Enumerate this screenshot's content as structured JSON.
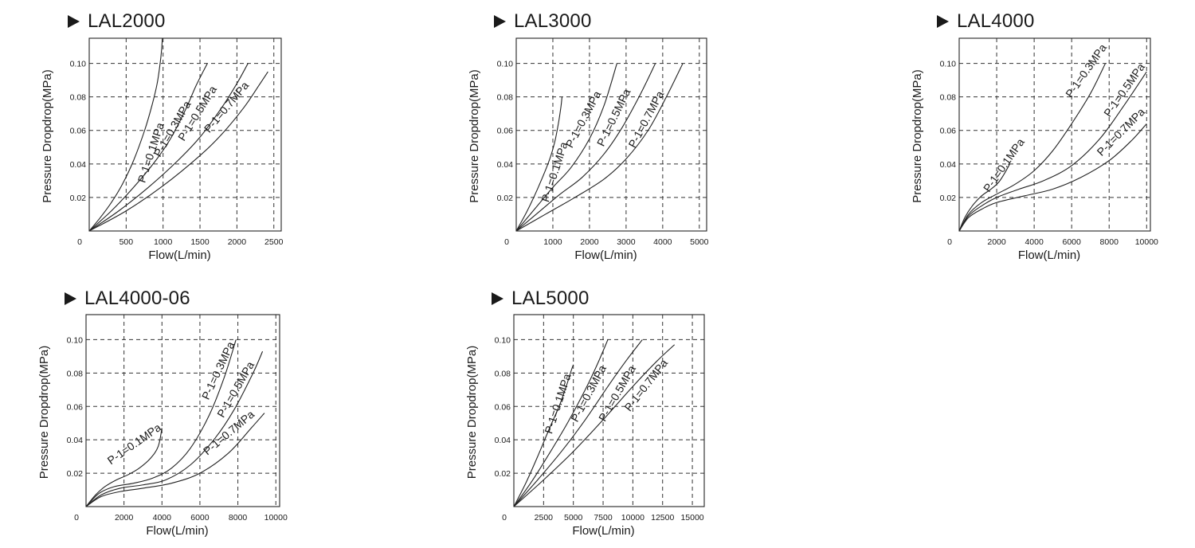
{
  "chart_data": [
    {
      "type": "line",
      "title": "LAL2000",
      "xlabel": "Flow(L/min)",
      "ylabel": "Pressure Dropdrop(MPa)",
      "xlim": [
        0,
        2600
      ],
      "ylim": [
        0,
        0.115
      ],
      "xticks": [
        0,
        500,
        1000,
        1500,
        2000,
        2500
      ],
      "xtick_labels": [
        "0",
        "500",
        "1000",
        "1500",
        "2000",
        "2500"
      ],
      "yticks": [
        0.02,
        0.04,
        0.06,
        0.08,
        0.1
      ],
      "ytick_labels": [
        "0.02",
        "0.04",
        "0.06",
        "0.08",
        "0.10"
      ],
      "grid": true,
      "series": [
        {
          "name": "P-1=0.1MPa",
          "x": [
            0,
            150,
            300,
            450,
            600,
            750,
            850,
            920,
            960,
            980,
            990
          ],
          "y": [
            0,
            0.008,
            0.017,
            0.028,
            0.042,
            0.06,
            0.075,
            0.088,
            0.1,
            0.108,
            0.115
          ]
        },
        {
          "name": "P-1=0.3MPa",
          "x": [
            0,
            300,
            600,
            900,
            1100,
            1300,
            1450,
            1600
          ],
          "y": [
            0,
            0.012,
            0.026,
            0.042,
            0.055,
            0.072,
            0.087,
            0.1
          ]
        },
        {
          "name": "P-1=0.5MPa",
          "x": [
            0,
            400,
            800,
            1200,
            1500,
            1800,
            2000,
            2150
          ],
          "y": [
            0,
            0.012,
            0.026,
            0.042,
            0.056,
            0.074,
            0.088,
            0.1
          ]
        },
        {
          "name": "P-1=0.7MPa",
          "x": [
            0,
            500,
            1000,
            1500,
            1800,
            2100,
            2300,
            2420
          ],
          "y": [
            0,
            0.012,
            0.027,
            0.045,
            0.058,
            0.074,
            0.087,
            0.095
          ]
        }
      ]
    },
    {
      "type": "line",
      "title": "LAL3000",
      "xlabel": "Flow(L/min)",
      "ylabel": "Pressure Dropdrop(MPa)",
      "xlim": [
        0,
        5200
      ],
      "ylim": [
        0,
        0.115
      ],
      "xticks": [
        0,
        1000,
        2000,
        3000,
        4000,
        5000
      ],
      "xtick_labels": [
        "0",
        "1000",
        "2000",
        "3000",
        "4000",
        "5000"
      ],
      "yticks": [
        0.02,
        0.04,
        0.06,
        0.08,
        0.1
      ],
      "ytick_labels": [
        "0.02",
        "0.04",
        "0.06",
        "0.08",
        "0.10"
      ],
      "grid": true,
      "series": [
        {
          "name": "P-1=0.1MPa",
          "x": [
            0,
            300,
            600,
            900,
            1050,
            1150,
            1220,
            1250
          ],
          "y": [
            0,
            0.012,
            0.026,
            0.042,
            0.053,
            0.064,
            0.074,
            0.08
          ]
        },
        {
          "name": "P-1=0.3MPa",
          "x": [
            0,
            500,
            1000,
            1500,
            2000,
            2400,
            2750
          ],
          "y": [
            0,
            0.013,
            0.026,
            0.038,
            0.055,
            0.075,
            0.1
          ]
        },
        {
          "name": "P-1=0.5MPa",
          "x": [
            0,
            600,
            1200,
            1800,
            2400,
            2900,
            3400,
            3800
          ],
          "y": [
            0,
            0.011,
            0.022,
            0.032,
            0.046,
            0.062,
            0.082,
            0.1
          ]
        },
        {
          "name": "P-1=0.7MPa",
          "x": [
            0,
            800,
            1600,
            2400,
            3000,
            3600,
            4100,
            4550
          ],
          "y": [
            0,
            0.01,
            0.02,
            0.031,
            0.043,
            0.06,
            0.08,
            0.1
          ]
        }
      ]
    },
    {
      "type": "line",
      "title": "LAL4000",
      "xlabel": "Flow(L/min)",
      "ylabel": "Pressure Dropdrop(MPa)",
      "xlim": [
        0,
        10200
      ],
      "ylim": [
        0,
        0.115
      ],
      "xticks": [
        0,
        2000,
        4000,
        6000,
        8000,
        10000
      ],
      "xtick_labels": [
        "0",
        "2000",
        "4000",
        "6000",
        "8000",
        "10000"
      ],
      "yticks": [
        0.02,
        0.04,
        0.06,
        0.08,
        0.1
      ],
      "ytick_labels": [
        "0.02",
        "0.04",
        "0.06",
        "0.08",
        "0.10"
      ],
      "grid": true,
      "series": [
        {
          "name": "P-1=0.1MPa",
          "x": [
            0,
            300,
            700,
            1200,
            1700,
            2100,
            2400,
            2700
          ],
          "y": [
            0,
            0.008,
            0.015,
            0.021,
            0.025,
            0.029,
            0.034,
            0.04
          ]
        },
        {
          "name": "P-1=0.3MPa",
          "x": [
            0,
            500,
            1200,
            2000,
            3000,
            4000,
            5000,
            6000,
            7000,
            7800
          ],
          "y": [
            0,
            0.01,
            0.017,
            0.022,
            0.028,
            0.036,
            0.048,
            0.064,
            0.082,
            0.1
          ]
        },
        {
          "name": "P-1=0.5MPa",
          "x": [
            0,
            500,
            1200,
            2000,
            3200,
            4500,
            6000,
            7500,
            8800,
            10000
          ],
          "y": [
            0,
            0.009,
            0.015,
            0.02,
            0.025,
            0.03,
            0.039,
            0.055,
            0.075,
            0.095
          ]
        },
        {
          "name": "P-1=0.7MPa",
          "x": [
            0,
            500,
            1200,
            2000,
            3500,
            5000,
            6500,
            8000,
            9200,
            10000
          ],
          "y": [
            0,
            0.008,
            0.013,
            0.017,
            0.021,
            0.025,
            0.032,
            0.042,
            0.054,
            0.064
          ]
        }
      ]
    },
    {
      "type": "line",
      "title": "LAL4000-06",
      "xlabel": "Flow(L/min)",
      "ylabel": "Pressure Dropdrop(MPa)",
      "xlim": [
        0,
        10200
      ],
      "ylim": [
        0,
        0.115
      ],
      "xticks": [
        0,
        2000,
        4000,
        6000,
        8000,
        10000
      ],
      "xtick_labels": [
        "0",
        "2000",
        "4000",
        "6000",
        "8000",
        "10000"
      ],
      "yticks": [
        0.02,
        0.04,
        0.06,
        0.08,
        0.1
      ],
      "ytick_labels": [
        "0.02",
        "0.04",
        "0.06",
        "0.08",
        "0.10"
      ],
      "grid": true,
      "series": [
        {
          "name": "P-1=0.1MPa",
          "x": [
            0,
            500,
            1000,
            1600,
            2200,
            2800,
            3400,
            3800,
            4000
          ],
          "y": [
            0,
            0.007,
            0.012,
            0.016,
            0.019,
            0.023,
            0.029,
            0.036,
            0.047
          ]
        },
        {
          "name": "P-1=0.3MPa",
          "x": [
            0,
            700,
            1500,
            2500,
            3500,
            4500,
            5500,
            6500,
            7300,
            7900
          ],
          "y": [
            0,
            0.008,
            0.012,
            0.014,
            0.017,
            0.023,
            0.035,
            0.055,
            0.078,
            0.1
          ]
        },
        {
          "name": "P-1=0.5MPa",
          "x": [
            0,
            800,
            1800,
            3000,
            4200,
            5500,
            6800,
            7800,
            8800,
            9300
          ],
          "y": [
            0,
            0.007,
            0.011,
            0.013,
            0.016,
            0.025,
            0.041,
            0.058,
            0.08,
            0.093
          ]
        },
        {
          "name": "P-1=0.7MPa",
          "x": [
            0,
            800,
            1800,
            3000,
            4500,
            6000,
            7500,
            8700,
            9400
          ],
          "y": [
            0,
            0.006,
            0.009,
            0.011,
            0.014,
            0.02,
            0.032,
            0.047,
            0.056
          ]
        }
      ]
    },
    {
      "type": "line",
      "title": "LAL5000",
      "xlabel": "Flow(L/min)",
      "ylabel": "Pressure Dropdrop(MPa)",
      "xlim": [
        0,
        16000
      ],
      "ylim": [
        0,
        0.115
      ],
      "xticks": [
        0,
        2500,
        5000,
        7500,
        10000,
        12500,
        15000
      ],
      "xtick_labels": [
        "0",
        "2500",
        "5000",
        "7500",
        "10000",
        "12500",
        "15000"
      ],
      "yticks": [
        0.02,
        0.04,
        0.06,
        0.08,
        0.1
      ],
      "ytick_labels": [
        "0.02",
        "0.04",
        "0.06",
        "0.08",
        "0.10"
      ],
      "grid": true,
      "series": [
        {
          "name": "P-1=0.1MPa",
          "x": [
            0,
            1000,
            2000,
            3000,
            3800,
            4400,
            4800,
            5000
          ],
          "y": [
            0,
            0.014,
            0.03,
            0.047,
            0.06,
            0.072,
            0.081,
            0.085
          ]
        },
        {
          "name": "P-1=0.3MPa",
          "x": [
            0,
            1500,
            3000,
            4500,
            6000,
            7000,
            7900
          ],
          "y": [
            0,
            0.015,
            0.032,
            0.05,
            0.07,
            0.085,
            0.1
          ]
        },
        {
          "name": "P-1=0.5MPa",
          "x": [
            0,
            2000,
            4000,
            6000,
            8000,
            9500,
            10800
          ],
          "y": [
            0,
            0.016,
            0.033,
            0.052,
            0.073,
            0.088,
            0.1
          ]
        },
        {
          "name": "P-1=0.7MPa",
          "x": [
            0,
            2500,
            5000,
            7500,
            10000,
            12000,
            13500
          ],
          "y": [
            0,
            0.016,
            0.033,
            0.052,
            0.072,
            0.087,
            0.097
          ]
        }
      ]
    }
  ]
}
